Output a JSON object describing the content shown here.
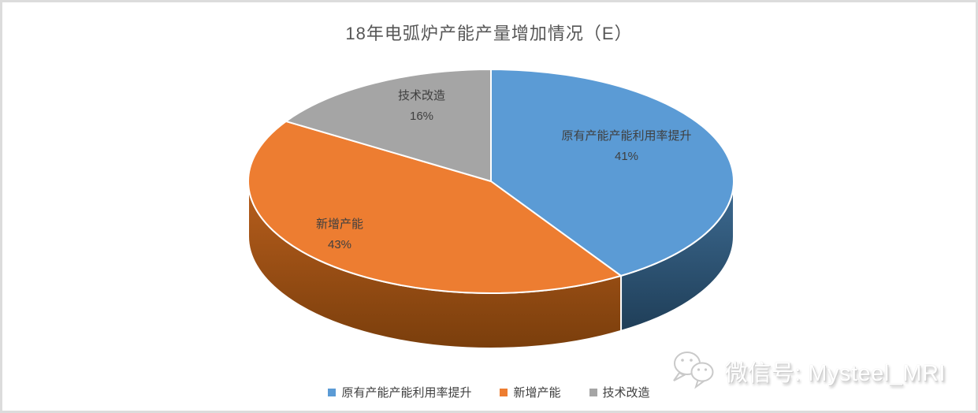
{
  "chart_data": {
    "type": "pie",
    "style": "3d",
    "title": "18年电弧炉产能产量增加情况（E）",
    "categories": [
      "原有产能产能利用率提升",
      "新增产能",
      "技术改造"
    ],
    "values": [
      41,
      43,
      16
    ],
    "unit": "%",
    "start_angle_deg": 0,
    "direction": "clockwise",
    "colors": [
      "#5B9BD5",
      "#ED7D31",
      "#A5A5A5"
    ],
    "side_colors": [
      [
        "#3E6C93",
        "#1F3E58"
      ],
      [
        "#B95F1D",
        "#7A3E0C"
      ],
      [
        "#8C8C8C",
        "#707070"
      ]
    ],
    "separator_color": "#FFFFFF",
    "title_color": "#565656",
    "label_color": "#3F3F3F",
    "legend_position": "bottom",
    "background": "#FFFFFF"
  },
  "watermark": {
    "icon": "wechat-icon",
    "text": "微信号: Mysteel_MRI"
  }
}
